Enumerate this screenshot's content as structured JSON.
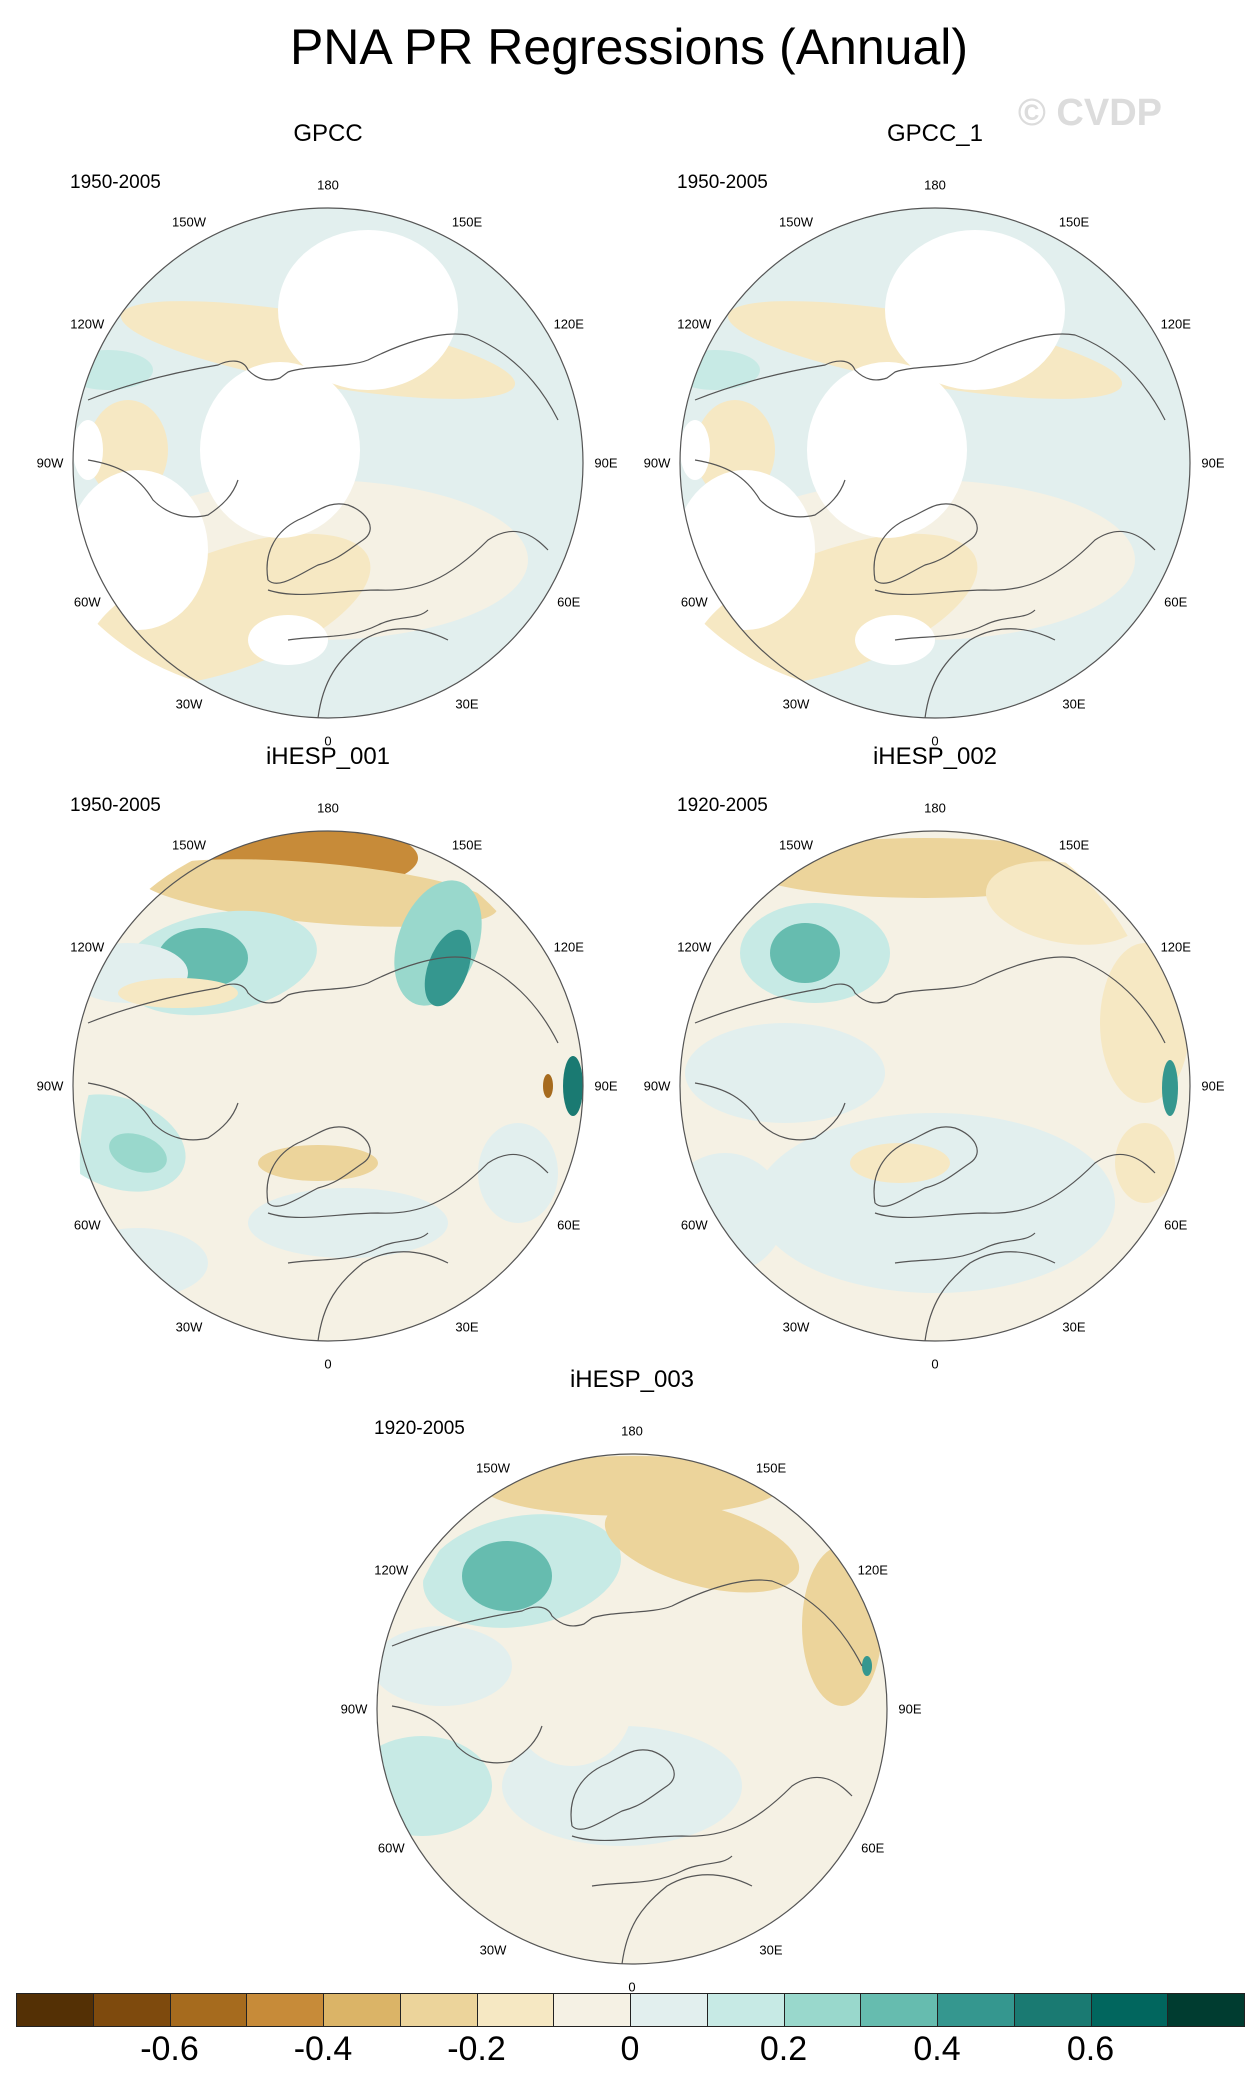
{
  "title": "PNA PR Regressions (Annual)",
  "watermark": "© CVDP",
  "lon_labels": [
    "180",
    "150E",
    "120E",
    "90E",
    "60E",
    "30E",
    "0",
    "30W",
    "60W",
    "90W",
    "120W",
    "150W"
  ],
  "panels": [
    {
      "name": "GPCC",
      "years": "1950-2005",
      "variant": "obs"
    },
    {
      "name": "GPCC_1",
      "years": "1950-2005",
      "variant": "obs"
    },
    {
      "name": "iHESP_001",
      "years": "1950-2005",
      "variant": "model1"
    },
    {
      "name": "iHESP_002",
      "years": "1920-2005",
      "variant": "model2"
    },
    {
      "name": "iHESP_003",
      "years": "1920-2005",
      "variant": "model3"
    }
  ],
  "colorbar": {
    "colors": [
      "#543005",
      "#7e4a0d",
      "#a66b1e",
      "#c78b39",
      "#dbb467",
      "#ecd49b",
      "#f6e8c3",
      "#f5f1e4",
      "#e2efee",
      "#c7eae5",
      "#99d8cc",
      "#66bcaf",
      "#35978f",
      "#1a7a72",
      "#01665e",
      "#003c30"
    ],
    "tick_labels": [
      "-0.6",
      "-0.4",
      "-0.2",
      "0",
      "0.2",
      "0.4",
      "0.6"
    ],
    "tick_values": [
      -0.6,
      -0.4,
      -0.2,
      0,
      0.2,
      0.4,
      0.6
    ],
    "range": [
      -0.8,
      0.8
    ]
  }
}
